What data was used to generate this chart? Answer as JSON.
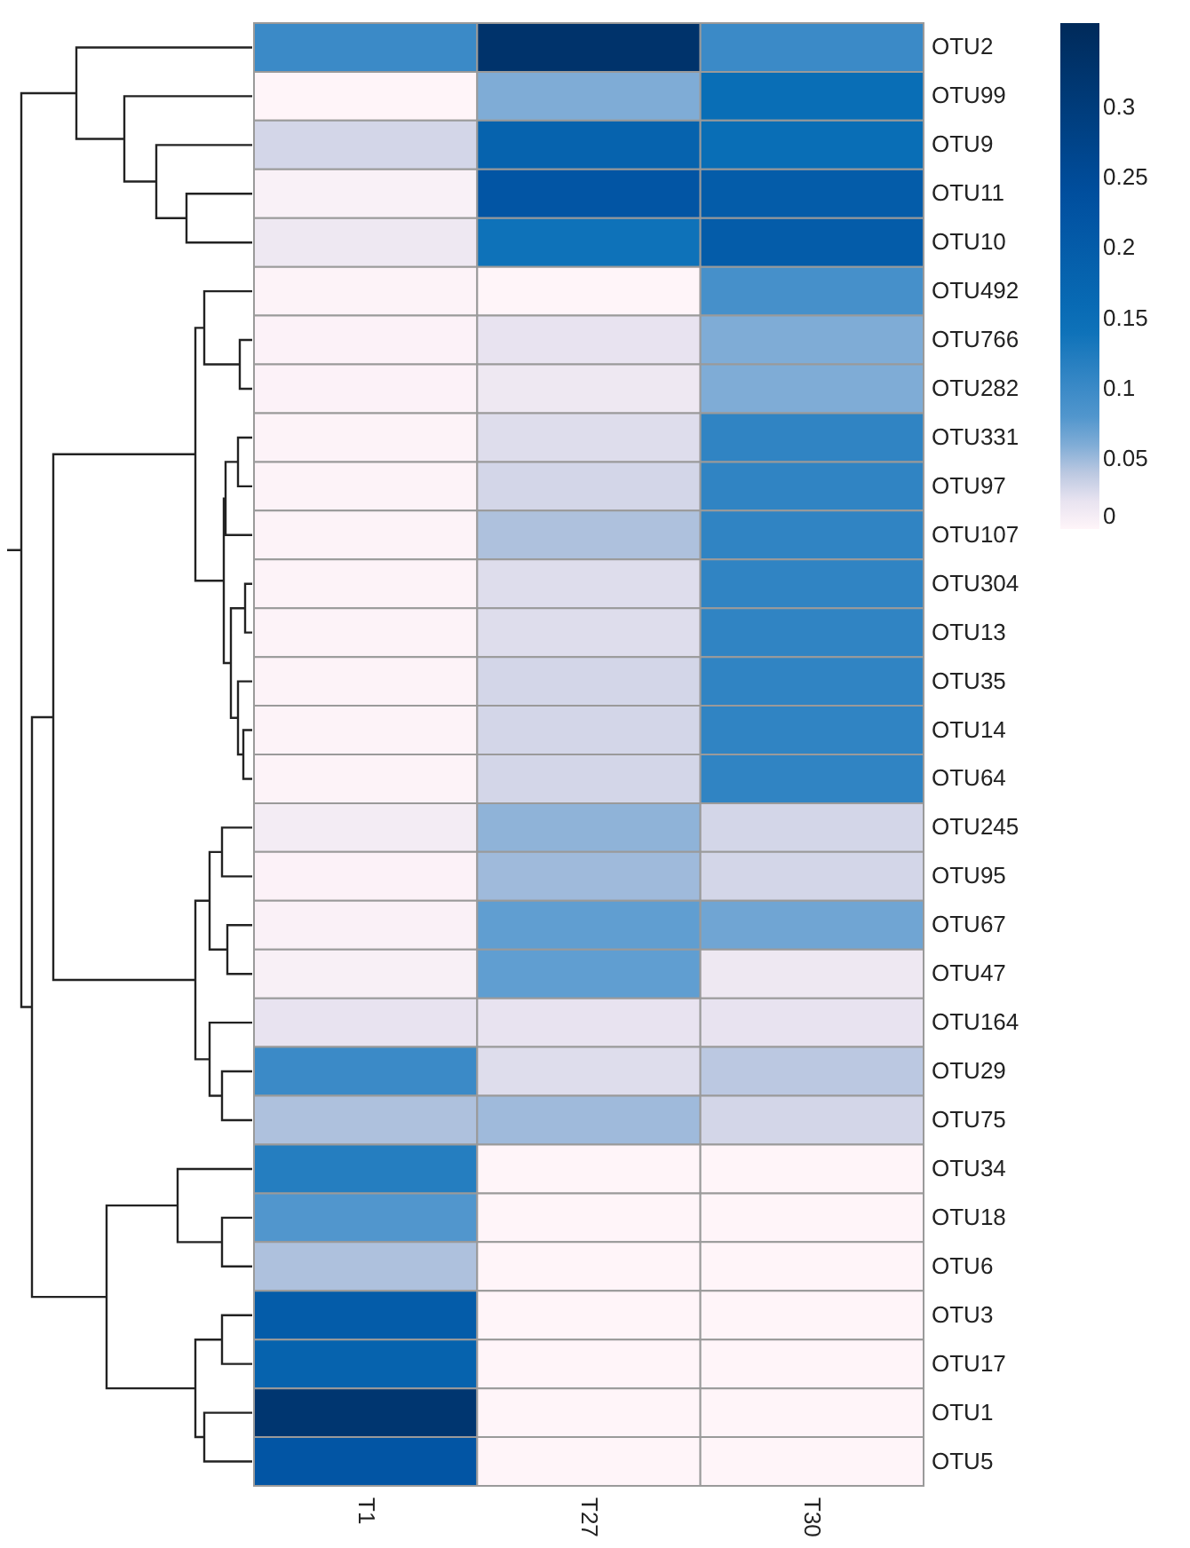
{
  "chart_data": {
    "type": "heatmap",
    "categories": [
      "T1",
      "T27",
      "T30"
    ],
    "y_categories": [
      "OTU2",
      "OTU99",
      "OTU9",
      "OTU11",
      "OTU10",
      "OTU492",
      "OTU766",
      "OTU282",
      "OTU331",
      "OTU97",
      "OTU107",
      "OTU304",
      "OTU13",
      "OTU35",
      "OTU14",
      "OTU64",
      "OTU245",
      "OTU95",
      "OTU67",
      "OTU47",
      "OTU164",
      "OTU29",
      "OTU75",
      "OTU34",
      "OTU18",
      "OTU6",
      "OTU3",
      "OTU17",
      "OTU1",
      "OTU5"
    ],
    "cells": [
      [
        0.1,
        0.33,
        0.1
      ],
      [
        0,
        0.06,
        0.15
      ],
      [
        0.03,
        0.18,
        0.15
      ],
      [
        0.005,
        0.22,
        0.2
      ],
      [
        0.015,
        0.14,
        0.2
      ],
      [
        0.002,
        0,
        0.09
      ],
      [
        0.003,
        0.02,
        0.06
      ],
      [
        0.003,
        0.015,
        0.06
      ],
      [
        0.002,
        0.025,
        0.11
      ],
      [
        0.002,
        0.03,
        0.11
      ],
      [
        0.002,
        0.045,
        0.11
      ],
      [
        0.002,
        0.025,
        0.11
      ],
      [
        0.002,
        0.025,
        0.11
      ],
      [
        0.002,
        0.03,
        0.11
      ],
      [
        0.002,
        0.03,
        0.11
      ],
      [
        0.002,
        0.03,
        0.11
      ],
      [
        0.01,
        0.055,
        0.03
      ],
      [
        0.003,
        0.05,
        0.03
      ],
      [
        0.004,
        0.07,
        0.065
      ],
      [
        0.006,
        0.07,
        0.015
      ],
      [
        0.02,
        0.02,
        0.02
      ],
      [
        0.1,
        0.025,
        0.04
      ],
      [
        0.045,
        0.05,
        0.03
      ],
      [
        0.12,
        0,
        0
      ],
      [
        0.08,
        0,
        0
      ],
      [
        0.045,
        0,
        0
      ],
      [
        0.2,
        0,
        0
      ],
      [
        0.18,
        0,
        0
      ],
      [
        0.32,
        0,
        0
      ],
      [
        0.22,
        0,
        0
      ]
    ],
    "clim": [
      0,
      0.36
    ],
    "cticks": [
      0,
      0.05,
      0.1,
      0.15,
      0.2,
      0.25,
      0.3
    ]
  }
}
